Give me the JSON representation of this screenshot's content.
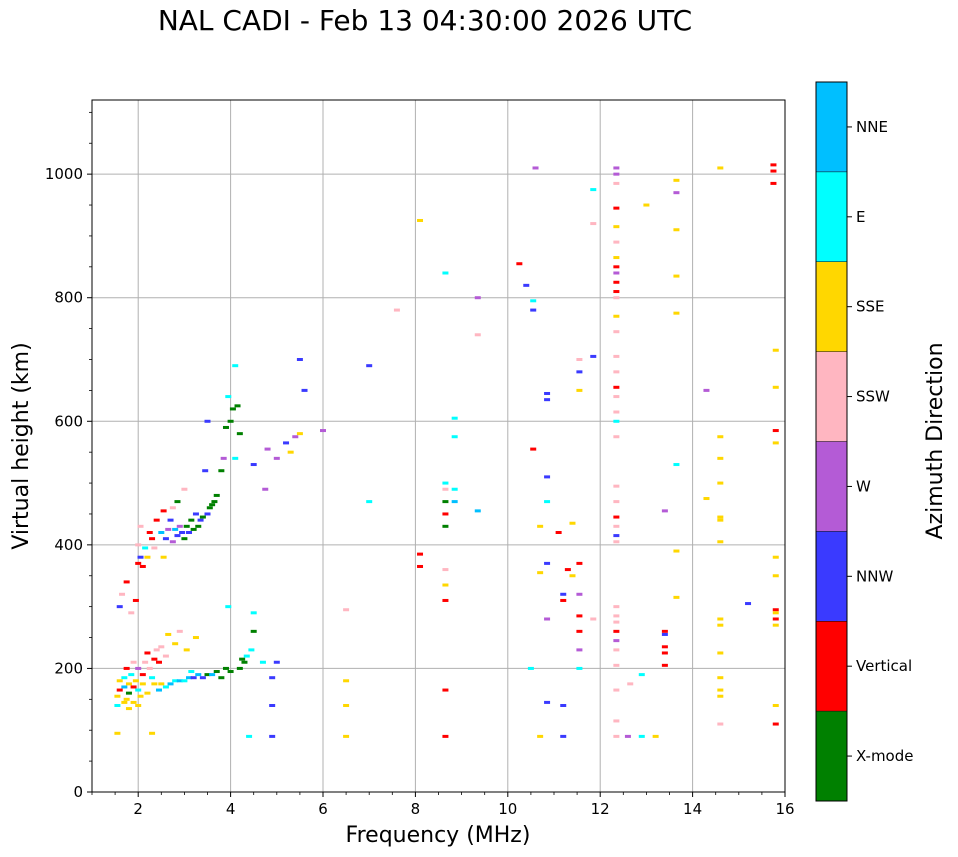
{
  "chart_data": {
    "type": "scatter",
    "title": "NAL CADI - Feb 13 04:30:00 2026 UTC",
    "xlabel": "Frequency (MHz)",
    "ylabel": "Virtual height (km)",
    "xlim": [
      1,
      16
    ],
    "ylim": [
      0,
      1120
    ],
    "xticks": [
      2,
      4,
      6,
      8,
      10,
      12,
      14,
      16
    ],
    "yticks": [
      0,
      200,
      400,
      600,
      800,
      1000
    ],
    "grid": true,
    "colorbar": {
      "label": "Azimuth Direction",
      "categories": [
        {
          "name": "X-mode",
          "color": "#008000"
        },
        {
          "name": "Vertical",
          "color": "#ff0000"
        },
        {
          "name": "NNW",
          "color": "#3a3aff"
        },
        {
          "name": "W",
          "color": "#b45bd6"
        },
        {
          "name": "SSW",
          "color": "#ffb6c1"
        },
        {
          "name": "SSE",
          "color": "#ffd700"
        },
        {
          "name": "E",
          "color": "#00ffff"
        },
        {
          "name": "NNE",
          "color": "#00bfff"
        }
      ]
    },
    "points": [
      [
        1.55,
        95,
        "SSE"
      ],
      [
        1.55,
        140,
        "E"
      ],
      [
        1.55,
        155,
        "SSE"
      ],
      [
        1.6,
        165,
        "Vertical"
      ],
      [
        1.6,
        180,
        "SSE"
      ],
      [
        1.6,
        300,
        "NNW"
      ],
      [
        1.65,
        320,
        "SSW"
      ],
      [
        1.7,
        145,
        "SSE"
      ],
      [
        1.7,
        170,
        "NNE"
      ],
      [
        1.7,
        185,
        "E"
      ],
      [
        1.75,
        150,
        "SSE"
      ],
      [
        1.75,
        200,
        "Vertical"
      ],
      [
        1.75,
        340,
        "Vertical"
      ],
      [
        1.8,
        135,
        "SSE"
      ],
      [
        1.8,
        160,
        "X-mode"
      ],
      [
        1.8,
        175,
        "SSE"
      ],
      [
        1.85,
        190,
        "E"
      ],
      [
        1.85,
        290,
        "SSW"
      ],
      [
        1.9,
        145,
        "SSE"
      ],
      [
        1.9,
        170,
        "Vertical"
      ],
      [
        1.9,
        210,
        "SSW"
      ],
      [
        1.95,
        180,
        "SSE"
      ],
      [
        1.95,
        310,
        "Vertical"
      ],
      [
        2.0,
        140,
        "SSE"
      ],
      [
        2.0,
        165,
        "E"
      ],
      [
        2.0,
        200,
        "W"
      ],
      [
        2.0,
        370,
        "Vertical"
      ],
      [
        2.0,
        400,
        "SSW"
      ],
      [
        2.05,
        155,
        "SSE"
      ],
      [
        2.05,
        380,
        "NNW"
      ],
      [
        2.05,
        430,
        "SSW"
      ],
      [
        2.1,
        175,
        "SSE"
      ],
      [
        2.1,
        190,
        "Vertical"
      ],
      [
        2.1,
        365,
        "Vertical"
      ],
      [
        2.15,
        210,
        "SSW"
      ],
      [
        2.15,
        395,
        "E"
      ],
      [
        2.2,
        160,
        "SSE"
      ],
      [
        2.2,
        225,
        "Vertical"
      ],
      [
        2.2,
        380,
        "SSE"
      ],
      [
        2.25,
        200,
        "SSW"
      ],
      [
        2.25,
        420,
        "Vertical"
      ],
      [
        2.3,
        95,
        "SSE"
      ],
      [
        2.3,
        185,
        "E"
      ],
      [
        2.3,
        410,
        "Vertical"
      ],
      [
        2.35,
        175,
        "SSE"
      ],
      [
        2.35,
        215,
        "Vertical"
      ],
      [
        2.35,
        395,
        "SSW"
      ],
      [
        2.4,
        230,
        "SSW"
      ],
      [
        2.4,
        440,
        "Vertical"
      ],
      [
        2.45,
        165,
        "NNE"
      ],
      [
        2.45,
        210,
        "Vertical"
      ],
      [
        2.5,
        175,
        "SSE"
      ],
      [
        2.5,
        235,
        "SSW"
      ],
      [
        2.5,
        420,
        "NNE"
      ],
      [
        2.55,
        380,
        "SSE"
      ],
      [
        2.55,
        455,
        "Vertical"
      ],
      [
        2.6,
        170,
        "E"
      ],
      [
        2.6,
        220,
        "SSW"
      ],
      [
        2.6,
        410,
        "NNW"
      ],
      [
        2.65,
        255,
        "SSE"
      ],
      [
        2.65,
        425,
        "W"
      ],
      [
        2.7,
        175,
        "NNE"
      ],
      [
        2.7,
        440,
        "NNW"
      ],
      [
        2.75,
        405,
        "W"
      ],
      [
        2.75,
        460,
        "SSW"
      ],
      [
        2.8,
        180,
        "E"
      ],
      [
        2.8,
        240,
        "SSE"
      ],
      [
        2.8,
        425,
        "NNE"
      ],
      [
        2.85,
        415,
        "NNW"
      ],
      [
        2.85,
        470,
        "X-mode"
      ],
      [
        2.9,
        180,
        "NNE"
      ],
      [
        2.9,
        260,
        "SSW"
      ],
      [
        2.9,
        430,
        "W"
      ],
      [
        2.95,
        420,
        "NNW"
      ],
      [
        3.0,
        180,
        "E"
      ],
      [
        3.0,
        410,
        "X-mode"
      ],
      [
        3.0,
        490,
        "SSW"
      ],
      [
        3.05,
        230,
        "SSE"
      ],
      [
        3.05,
        430,
        "X-mode"
      ],
      [
        3.1,
        185,
        "NNE"
      ],
      [
        3.1,
        420,
        "NNW"
      ],
      [
        3.15,
        195,
        "E"
      ],
      [
        3.15,
        440,
        "X-mode"
      ],
      [
        3.2,
        185,
        "NNW"
      ],
      [
        3.2,
        425,
        "X-mode"
      ],
      [
        3.25,
        250,
        "SSE"
      ],
      [
        3.25,
        450,
        "NNW"
      ],
      [
        3.3,
        190,
        "NNE"
      ],
      [
        3.3,
        430,
        "X-mode"
      ],
      [
        3.35,
        440,
        "NNW"
      ],
      [
        3.4,
        185,
        "NNW"
      ],
      [
        3.4,
        445,
        "X-mode"
      ],
      [
        3.45,
        520,
        "NNW"
      ],
      [
        3.5,
        190,
        "X-mode"
      ],
      [
        3.5,
        450,
        "NNW"
      ],
      [
        3.5,
        600,
        "NNW"
      ],
      [
        3.55,
        460,
        "X-mode"
      ],
      [
        3.6,
        190,
        "NNE"
      ],
      [
        3.6,
        465,
        "X-mode"
      ],
      [
        3.65,
        470,
        "X-mode"
      ],
      [
        3.7,
        195,
        "X-mode"
      ],
      [
        3.7,
        480,
        "X-mode"
      ],
      [
        3.8,
        185,
        "X-mode"
      ],
      [
        3.8,
        520,
        "X-mode"
      ],
      [
        3.85,
        540,
        "W"
      ],
      [
        3.9,
        200,
        "X-mode"
      ],
      [
        3.9,
        590,
        "X-mode"
      ],
      [
        3.95,
        300,
        "E"
      ],
      [
        3.95,
        640,
        "E"
      ],
      [
        4.0,
        195,
        "X-mode"
      ],
      [
        4.0,
        600,
        "X-mode"
      ],
      [
        4.05,
        620,
        "X-mode"
      ],
      [
        4.1,
        540,
        "E"
      ],
      [
        4.1,
        690,
        "E"
      ],
      [
        4.15,
        625,
        "X-mode"
      ],
      [
        4.2,
        200,
        "X-mode"
      ],
      [
        4.2,
        580,
        "X-mode"
      ],
      [
        4.25,
        215,
        "X-mode"
      ],
      [
        4.3,
        210,
        "X-mode"
      ],
      [
        4.35,
        220,
        "E"
      ],
      [
        4.4,
        90,
        "E"
      ],
      [
        4.45,
        230,
        "E"
      ],
      [
        4.5,
        260,
        "X-mode"
      ],
      [
        4.5,
        530,
        "NNW"
      ],
      [
        4.5,
        290,
        "E"
      ],
      [
        4.7,
        210,
        "E"
      ],
      [
        4.75,
        490,
        "W"
      ],
      [
        4.8,
        555,
        "W"
      ],
      [
        4.9,
        185,
        "NNW"
      ],
      [
        4.9,
        140,
        "NNW"
      ],
      [
        4.9,
        90,
        "NNW"
      ],
      [
        5.0,
        210,
        "NNW"
      ],
      [
        5.0,
        540,
        "W"
      ],
      [
        5.2,
        565,
        "NNW"
      ],
      [
        5.3,
        550,
        "SSE"
      ],
      [
        5.4,
        575,
        "W"
      ],
      [
        5.5,
        580,
        "SSE"
      ],
      [
        5.5,
        700,
        "NNW"
      ],
      [
        5.6,
        650,
        "NNW"
      ],
      [
        6.0,
        585,
        "W"
      ],
      [
        6.5,
        140,
        "SSE"
      ],
      [
        6.5,
        180,
        "SSE"
      ],
      [
        6.5,
        90,
        "SSE"
      ],
      [
        6.5,
        295,
        "SSW"
      ],
      [
        7.0,
        690,
        "NNW"
      ],
      [
        7.0,
        470,
        "E"
      ],
      [
        7.6,
        780,
        "SSW"
      ],
      [
        8.1,
        925,
        "SSE"
      ],
      [
        8.1,
        385,
        "Vertical"
      ],
      [
        8.1,
        365,
        "Vertical"
      ],
      [
        8.65,
        90,
        "Vertical"
      ],
      [
        8.65,
        165,
        "Vertical"
      ],
      [
        8.65,
        310,
        "Vertical"
      ],
      [
        8.65,
        335,
        "SSE"
      ],
      [
        8.65,
        360,
        "SSW"
      ],
      [
        8.65,
        430,
        "X-mode"
      ],
      [
        8.65,
        450,
        "Vertical"
      ],
      [
        8.65,
        470,
        "X-mode"
      ],
      [
        8.65,
        490,
        "SSW"
      ],
      [
        8.65,
        500,
        "E"
      ],
      [
        8.65,
        840,
        "E"
      ],
      [
        8.85,
        470,
        "NNE"
      ],
      [
        8.85,
        490,
        "E"
      ],
      [
        8.85,
        575,
        "E"
      ],
      [
        8.85,
        605,
        "E"
      ],
      [
        9.35,
        455,
        "NNE"
      ],
      [
        9.35,
        740,
        "SSW"
      ],
      [
        9.35,
        800,
        "W"
      ],
      [
        10.25,
        855,
        "Vertical"
      ],
      [
        10.4,
        820,
        "NNW"
      ],
      [
        10.5,
        200,
        "E"
      ],
      [
        10.55,
        795,
        "E"
      ],
      [
        10.55,
        780,
        "NNW"
      ],
      [
        10.55,
        555,
        "Vertical"
      ],
      [
        10.6,
        1010,
        "W"
      ],
      [
        10.7,
        355,
        "SSE"
      ],
      [
        10.7,
        90,
        "SSE"
      ],
      [
        10.7,
        430,
        "SSE"
      ],
      [
        10.85,
        635,
        "NNW"
      ],
      [
        10.85,
        645,
        "NNW"
      ],
      [
        10.85,
        510,
        "NNW"
      ],
      [
        10.85,
        470,
        "E"
      ],
      [
        10.85,
        370,
        "NNW"
      ],
      [
        10.85,
        280,
        "W"
      ],
      [
        10.85,
        145,
        "NNW"
      ],
      [
        11.1,
        420,
        "Vertical"
      ],
      [
        11.2,
        310,
        "Vertical"
      ],
      [
        11.2,
        320,
        "NNW"
      ],
      [
        11.2,
        140,
        "NNW"
      ],
      [
        11.2,
        90,
        "NNW"
      ],
      [
        11.3,
        360,
        "Vertical"
      ],
      [
        11.4,
        350,
        "SSE"
      ],
      [
        11.4,
        435,
        "SSE"
      ],
      [
        11.55,
        700,
        "SSW"
      ],
      [
        11.55,
        680,
        "NNW"
      ],
      [
        11.55,
        650,
        "SSE"
      ],
      [
        11.55,
        370,
        "Vertical"
      ],
      [
        11.55,
        320,
        "W"
      ],
      [
        11.55,
        285,
        "Vertical"
      ],
      [
        11.55,
        260,
        "Vertical"
      ],
      [
        11.55,
        230,
        "W"
      ],
      [
        11.55,
        200,
        "E"
      ],
      [
        11.85,
        975,
        "E"
      ],
      [
        11.85,
        920,
        "SSW"
      ],
      [
        11.85,
        705,
        "NNW"
      ],
      [
        11.85,
        280,
        "SSW"
      ],
      [
        12.35,
        1010,
        "W"
      ],
      [
        12.35,
        1000,
        "W"
      ],
      [
        12.35,
        985,
        "SSW"
      ],
      [
        12.35,
        945,
        "Vertical"
      ],
      [
        12.35,
        915,
        "SSE"
      ],
      [
        12.35,
        890,
        "SSW"
      ],
      [
        12.35,
        865,
        "SSE"
      ],
      [
        12.35,
        850,
        "Vertical"
      ],
      [
        12.35,
        840,
        "W"
      ],
      [
        12.35,
        825,
        "Vertical"
      ],
      [
        12.35,
        810,
        "Vertical"
      ],
      [
        12.35,
        800,
        "SSW"
      ],
      [
        12.35,
        770,
        "SSE"
      ],
      [
        12.35,
        745,
        "SSW"
      ],
      [
        12.35,
        705,
        "SSW"
      ],
      [
        12.35,
        680,
        "SSW"
      ],
      [
        12.35,
        655,
        "Vertical"
      ],
      [
        12.35,
        640,
        "SSW"
      ],
      [
        12.35,
        615,
        "SSW"
      ],
      [
        12.35,
        600,
        "E"
      ],
      [
        12.35,
        575,
        "SSW"
      ],
      [
        12.35,
        495,
        "SSW"
      ],
      [
        12.35,
        470,
        "SSW"
      ],
      [
        12.35,
        445,
        "Vertical"
      ],
      [
        12.35,
        430,
        "SSW"
      ],
      [
        12.35,
        415,
        "NNW"
      ],
      [
        12.35,
        405,
        "SSW"
      ],
      [
        12.35,
        300,
        "SSW"
      ],
      [
        12.35,
        285,
        "SSW"
      ],
      [
        12.35,
        275,
        "SSW"
      ],
      [
        12.35,
        260,
        "Vertical"
      ],
      [
        12.35,
        245,
        "W"
      ],
      [
        12.35,
        230,
        "SSW"
      ],
      [
        12.35,
        205,
        "SSW"
      ],
      [
        12.35,
        165,
        "SSW"
      ],
      [
        12.35,
        115,
        "SSW"
      ],
      [
        12.35,
        90,
        "SSW"
      ],
      [
        12.6,
        90,
        "W"
      ],
      [
        12.65,
        175,
        "SSW"
      ],
      [
        12.9,
        190,
        "E"
      ],
      [
        12.9,
        90,
        "E"
      ],
      [
        13.0,
        950,
        "SSE"
      ],
      [
        13.2,
        90,
        "SSE"
      ],
      [
        13.4,
        260,
        "Vertical"
      ],
      [
        13.4,
        255,
        "NNW"
      ],
      [
        13.4,
        235,
        "Vertical"
      ],
      [
        13.4,
        225,
        "Vertical"
      ],
      [
        13.4,
        205,
        "Vertical"
      ],
      [
        13.4,
        455,
        "W"
      ],
      [
        13.65,
        990,
        "SSE"
      ],
      [
        13.65,
        970,
        "W"
      ],
      [
        13.65,
        910,
        "SSE"
      ],
      [
        13.65,
        835,
        "SSE"
      ],
      [
        13.65,
        775,
        "SSE"
      ],
      [
        13.65,
        530,
        "E"
      ],
      [
        13.65,
        390,
        "SSE"
      ],
      [
        13.65,
        315,
        "SSE"
      ],
      [
        14.3,
        650,
        "W"
      ],
      [
        14.3,
        475,
        "SSE"
      ],
      [
        14.6,
        1010,
        "SSE"
      ],
      [
        14.6,
        575,
        "SSE"
      ],
      [
        14.6,
        540,
        "SSE"
      ],
      [
        14.6,
        500,
        "SSE"
      ],
      [
        14.6,
        445,
        "SSE"
      ],
      [
        14.6,
        440,
        "SSE"
      ],
      [
        14.6,
        405,
        "SSE"
      ],
      [
        14.6,
        280,
        "SSE"
      ],
      [
        14.6,
        270,
        "SSE"
      ],
      [
        14.6,
        225,
        "SSE"
      ],
      [
        14.6,
        185,
        "SSE"
      ],
      [
        14.6,
        165,
        "SSE"
      ],
      [
        14.6,
        155,
        "SSE"
      ],
      [
        14.6,
        110,
        "SSW"
      ],
      [
        15.2,
        305,
        "NNW"
      ],
      [
        15.75,
        1015,
        "Vertical"
      ],
      [
        15.75,
        1005,
        "Vertical"
      ],
      [
        15.75,
        985,
        "Vertical"
      ],
      [
        15.8,
        715,
        "SSE"
      ],
      [
        15.8,
        655,
        "SSE"
      ],
      [
        15.8,
        585,
        "Vertical"
      ],
      [
        15.8,
        565,
        "SSE"
      ],
      [
        15.8,
        380,
        "SSE"
      ],
      [
        15.8,
        350,
        "SSE"
      ],
      [
        15.8,
        295,
        "Vertical"
      ],
      [
        15.8,
        290,
        "SSE"
      ],
      [
        15.8,
        280,
        "Vertical"
      ],
      [
        15.8,
        270,
        "SSE"
      ],
      [
        15.8,
        140,
        "SSE"
      ],
      [
        15.8,
        110,
        "Vertical"
      ]
    ]
  }
}
